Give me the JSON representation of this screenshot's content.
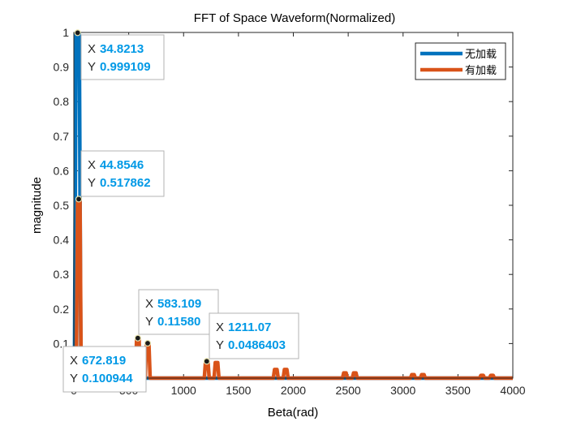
{
  "colors": {
    "series_blue": "#0072BD",
    "series_orange": "#D95319",
    "datatip_value": "#0099E6"
  },
  "chart_data": {
    "type": "line",
    "title": "FFT of Space Waveform(Normalized)",
    "xlabel": "Beta(rad)",
    "ylabel": "magnitude",
    "xlim": [
      0,
      4000
    ],
    "ylim": [
      0,
      1
    ],
    "xticks": [
      0,
      500,
      1000,
      1500,
      2000,
      2500,
      3000,
      3500,
      4000
    ],
    "xtick_labels": [
      "0",
      "500",
      "1000",
      "1500",
      "2000",
      "2500",
      "3000",
      "3500",
      "4000"
    ],
    "yticks": [
      0,
      0.1,
      0.2,
      0.3,
      0.4,
      0.5,
      0.6,
      0.7,
      0.8,
      0.9,
      1
    ],
    "ytick_labels": [
      "0",
      "0.1",
      "0.2",
      "0.3",
      "0.4",
      "0.5",
      "0.6",
      "0.7",
      "0.8",
      "0.9",
      "1"
    ],
    "grid": false,
    "legend_location": "top-right",
    "series": [
      {
        "name": "无加载",
        "color": "#0072BD",
        "peaks": [
          {
            "x": 34.8213,
            "y": 0.999109
          }
        ]
      },
      {
        "name": "有加载",
        "color": "#D95319",
        "peaks": [
          {
            "x": 44.8546,
            "y": 0.517862
          },
          {
            "x": 583.109,
            "y": 0.1158
          },
          {
            "x": 672.819,
            "y": 0.100944
          },
          {
            "x": 1211.07,
            "y": 0.0486403
          },
          {
            "x": 1300,
            "y": 0.045
          },
          {
            "x": 1840,
            "y": 0.025
          },
          {
            "x": 1930,
            "y": 0.025
          },
          {
            "x": 2470,
            "y": 0.015
          },
          {
            "x": 2560,
            "y": 0.015
          },
          {
            "x": 3090,
            "y": 0.01
          },
          {
            "x": 3180,
            "y": 0.01
          },
          {
            "x": 3720,
            "y": 0.008
          },
          {
            "x": 3810,
            "y": 0.008
          }
        ]
      }
    ],
    "datatips": [
      {
        "x_label": "X",
        "y_label": "Y",
        "x_text": "34.8213",
        "y_text": "0.999109",
        "x": 34.8213,
        "y": 0.999109
      },
      {
        "x_label": "X",
        "y_label": "Y",
        "x_text": "44.8546",
        "y_text": "0.517862",
        "x": 44.8546,
        "y": 0.517862
      },
      {
        "x_label": "X",
        "y_label": "Y",
        "x_text": "583.109",
        "y_text": "0.11580",
        "x": 583.109,
        "y": 0.1158
      },
      {
        "x_label": "X",
        "y_label": "Y",
        "x_text": "1211.07",
        "y_text": "0.0486403",
        "x": 1211.07,
        "y": 0.0486403
      },
      {
        "x_label": "X",
        "y_label": "Y",
        "x_text": "672.819",
        "y_text": "0.100944",
        "x": 672.819,
        "y": 0.100944
      }
    ]
  }
}
